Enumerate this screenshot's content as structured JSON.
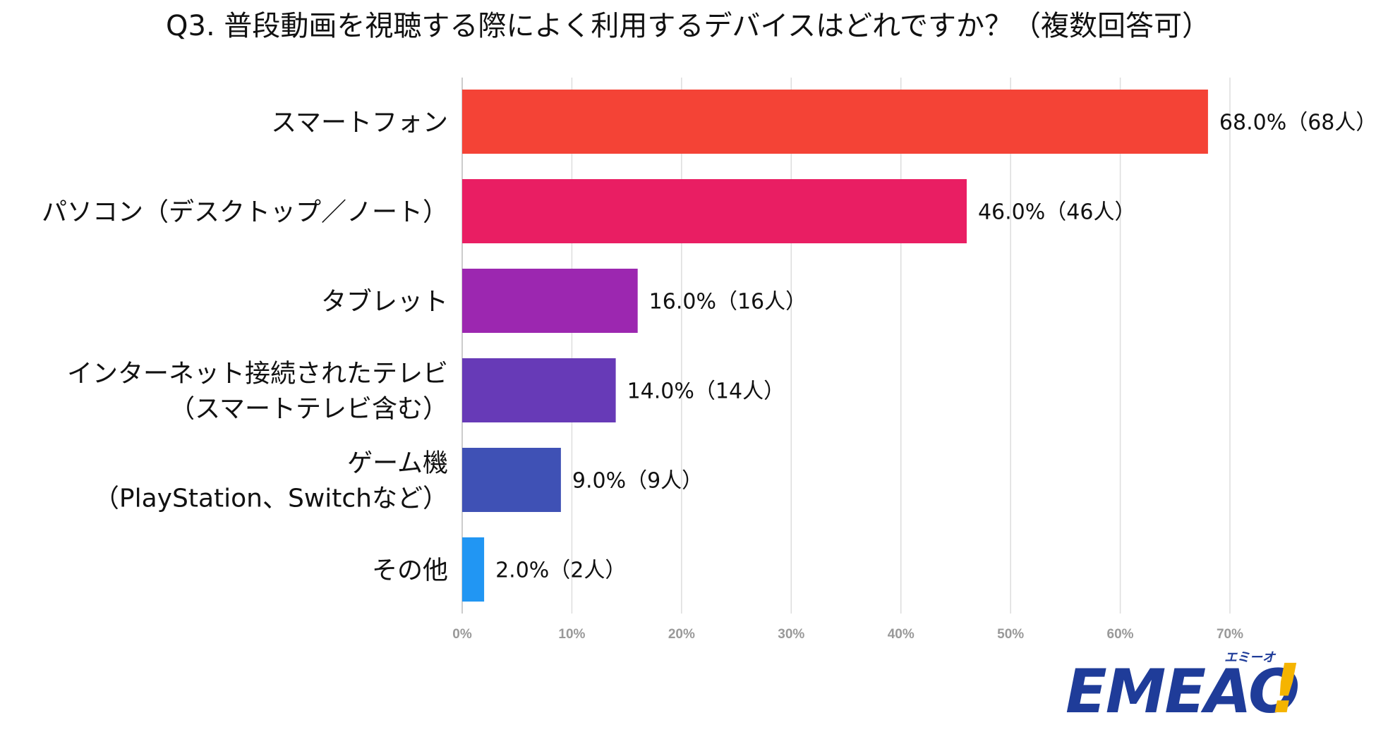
{
  "chart_data": {
    "type": "bar",
    "orientation": "horizontal",
    "title": "Q3. 普段動画を視聴する際によく利用するデバイスはどれですか？（複数回答可）",
    "categories": [
      [
        "スマートフォン"
      ],
      [
        "パソコン（デスクトップ／ノート）"
      ],
      [
        "タブレット"
      ],
      [
        "インターネット接続されたテレビ",
        "（スマートテレビ含む）"
      ],
      [
        "ゲーム機",
        "（PlayStation、Switchなど）"
      ],
      [
        "その他"
      ]
    ],
    "values": [
      68.0,
      46.0,
      16.0,
      14.0,
      9.0,
      2.0
    ],
    "data_labels": [
      "68.0%（68人）",
      "46.0%（46人）",
      "16.0%（16人）",
      "14.0%（14人）",
      "9.0%（9人）",
      "2.0%（2人）"
    ],
    "colors": [
      "#f44336",
      "#e91e63",
      "#9c27b0",
      "#673ab7",
      "#3f51b5",
      "#2196f3"
    ],
    "xlim": [
      0,
      70
    ],
    "x_ticks": [
      0,
      10,
      20,
      30,
      40,
      50,
      60,
      70
    ],
    "x_tick_labels": [
      "0%",
      "10%",
      "20%",
      "30%",
      "40%",
      "50%",
      "60%",
      "70%"
    ],
    "grid": true,
    "legend": "none"
  },
  "logo": {
    "text": "EMEAO",
    "bang": "!",
    "kana": "エミーオ"
  }
}
